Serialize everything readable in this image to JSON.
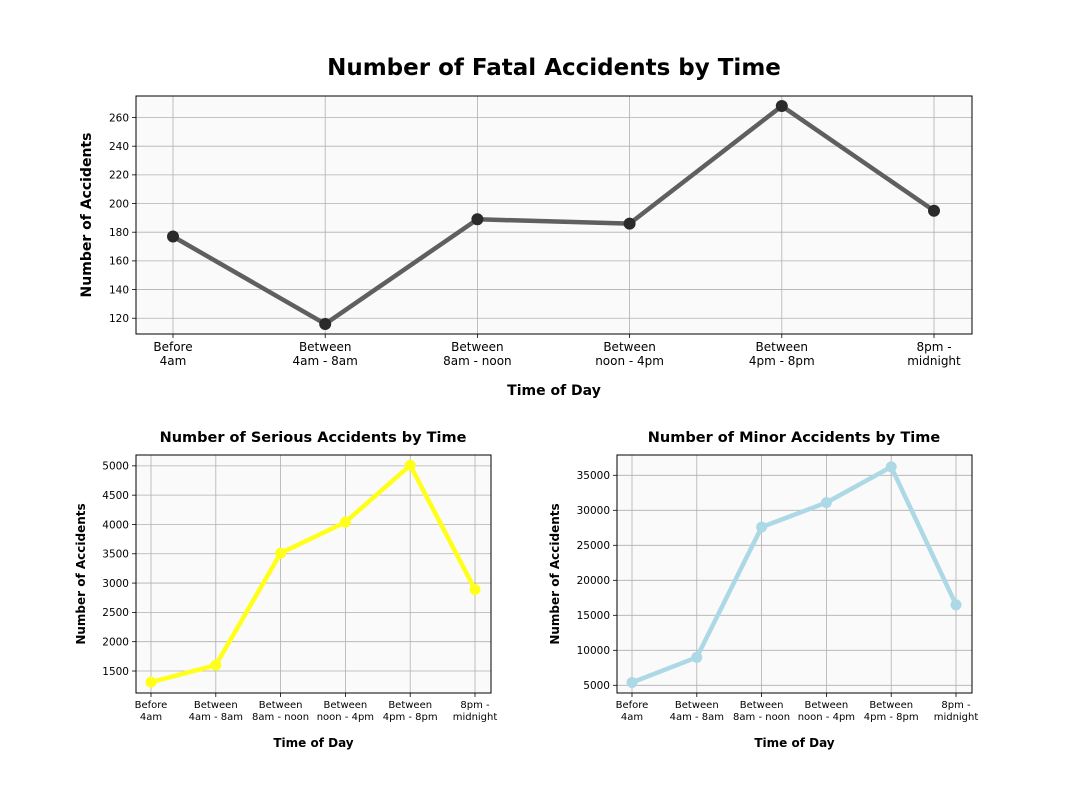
{
  "title": "Number of Fatal Accidents by Time",
  "colors": {
    "fatal": "#5f5f5f",
    "fatal_marker": "#2b2b2b",
    "serious": "#ffff1a",
    "minor": "#add8e6",
    "plot_background": "#fafafa",
    "grid": "#b0b0b0"
  },
  "chart_data": [
    {
      "type": "line",
      "title": "Number of Fatal Accidents by Time",
      "xlabel": "Time of Day",
      "ylabel": "Number of Accidents",
      "categories": [
        "Before\n4am",
        "Between\n4am - 8am",
        "Between\n8am - noon",
        "Between\nnoon - 4pm",
        "Between\n4pm - 8pm",
        "8pm -\nmidnight"
      ],
      "series": [
        {
          "values": [
            177,
            116,
            189,
            186,
            268,
            195
          ]
        }
      ],
      "ylim": [
        109,
        275
      ],
      "yticks": [
        120,
        140,
        160,
        180,
        200,
        220,
        240,
        260
      ],
      "grid": true,
      "legend": false
    },
    {
      "type": "line",
      "title": "Number of Serious Accidents by Time",
      "xlabel": "Time of Day",
      "ylabel": "Number of Accidents",
      "categories": [
        "Before\n4am",
        "Between\n4am - 8am",
        "Between\n8am - noon",
        "Between\nnoon - 4pm",
        "Between\n4pm - 8pm",
        "8pm -\nmidnight"
      ],
      "series": [
        {
          "values": [
            1310,
            1600,
            3510,
            4040,
            5010,
            2890
          ]
        }
      ],
      "ylim": [
        1125,
        5185
      ],
      "yticks": [
        1500,
        2000,
        2500,
        3000,
        3500,
        4000,
        4500,
        5000
      ],
      "grid": true,
      "legend": false
    },
    {
      "type": "line",
      "title": "Number of Minor Accidents by Time",
      "xlabel": "Time of Day",
      "ylabel": "Number of Accidents",
      "categories": [
        "Before\n4am",
        "Between\n4am - 8am",
        "Between\n8am - noon",
        "Between\nnoon - 4pm",
        "Between\n4pm - 8pm",
        "8pm -\nmidnight"
      ],
      "series": [
        {
          "values": [
            5400,
            9000,
            27600,
            31100,
            36200,
            16500
          ]
        }
      ],
      "ylim": [
        3900,
        37900
      ],
      "yticks": [
        5000,
        10000,
        15000,
        20000,
        25000,
        30000,
        35000
      ],
      "grid": true,
      "legend": false
    }
  ]
}
